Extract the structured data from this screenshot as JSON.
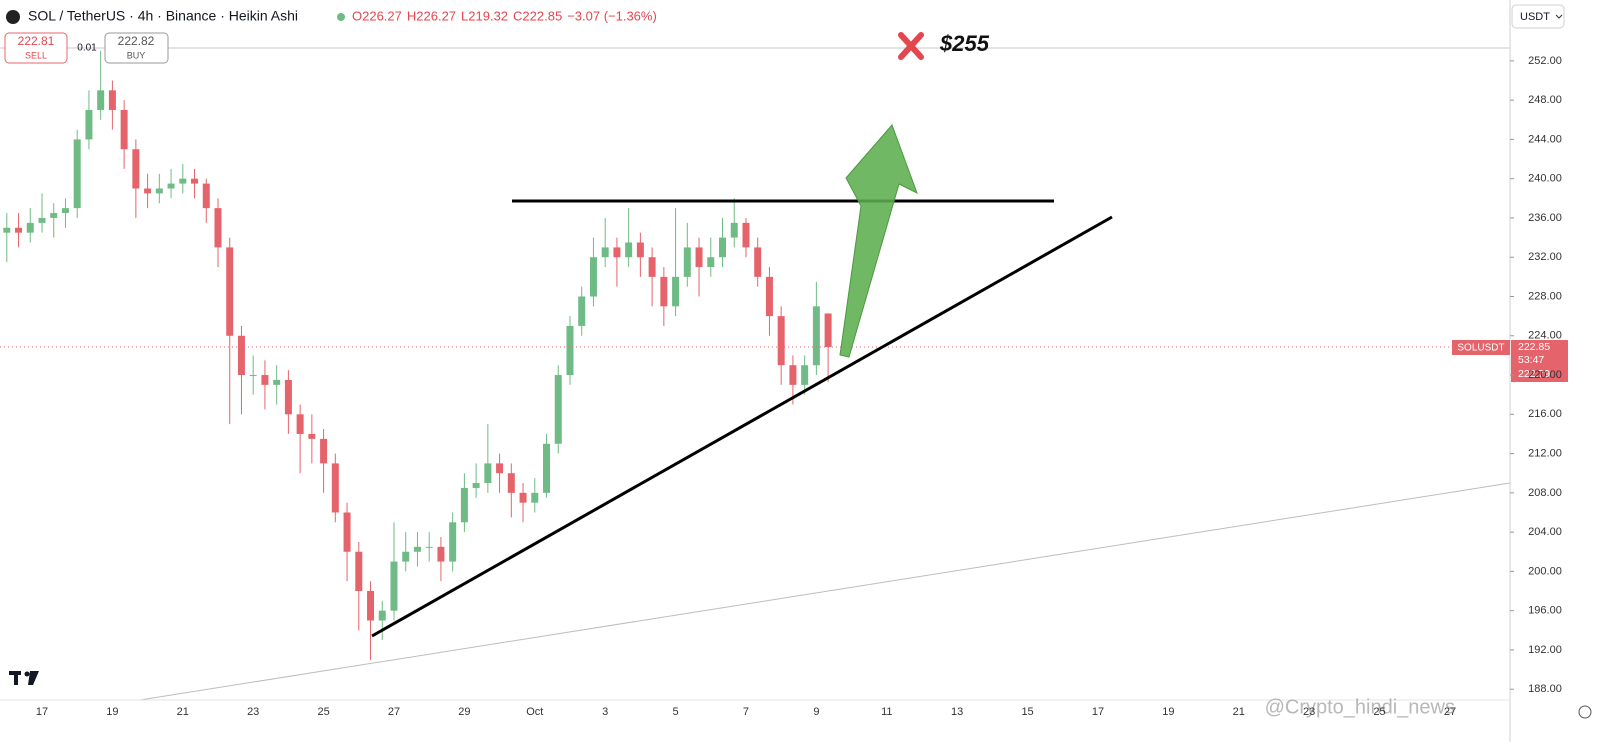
{
  "chart_data": {
    "type": "candlestick",
    "title": "SOL / TetherUS · 4h · Binance · Heikin Ashi",
    "ohlc_legend": [
      "O226.27",
      "H226.27",
      "L219.32",
      "C222.85",
      "−3.07 (−1.36%)"
    ],
    "trade": {
      "sell_price": "222.81",
      "sell": "SELL",
      "spread": "0.01",
      "buy_price": "222.82",
      "buy": "BUY"
    },
    "currency": "USDT",
    "price_label": {
      "symbol": "SOLUSDT",
      "price": "222.85",
      "countdown": "53:47",
      "ask": "222.79"
    },
    "annotation": "$255",
    "watermark": "@Crypto_hindi_news",
    "up_color": "#6fbb85",
    "down_color": "#e5646c",
    "categories": [
      null,
      null,
      null,
      "17",
      null,
      null,
      null,
      null,
      null,
      "19",
      null,
      null,
      null,
      null,
      null,
      "21",
      null,
      null,
      null,
      null,
      null,
      "23",
      null,
      null,
      null,
      null,
      null,
      "25",
      null,
      null,
      null,
      null,
      null,
      "27",
      null,
      null,
      null,
      null,
      null,
      "29",
      null,
      null,
      null,
      null,
      null,
      "Oct",
      null,
      null,
      null,
      null,
      null,
      "3",
      null,
      null,
      null,
      null,
      null,
      "5",
      null,
      null,
      null,
      null,
      null,
      "7",
      null,
      null,
      null,
      null,
      null,
      "9",
      null,
      null,
      null,
      null,
      null,
      "11",
      null,
      null,
      null,
      null,
      null,
      "13",
      null,
      null,
      null,
      null,
      null,
      "15",
      null,
      null,
      null,
      null,
      null,
      "17",
      null,
      null,
      null,
      null,
      null,
      "19",
      null,
      null,
      null,
      null,
      null,
      "21",
      null,
      null,
      null,
      null,
      null,
      "23",
      null,
      null,
      null,
      null,
      null,
      "25",
      null,
      null,
      null,
      null,
      null,
      "27",
      null,
      null,
      null,
      null
    ],
    "open": [
      234.5,
      235,
      234.5,
      235.5,
      236,
      236.5,
      237,
      244,
      247,
      249,
      247,
      243,
      239,
      238.5,
      239,
      239.5,
      240,
      239.5,
      237,
      233,
      224,
      220,
      220,
      219,
      219.5,
      216,
      214,
      213.5,
      211,
      206,
      202,
      198,
      195,
      196,
      201,
      202,
      202.5,
      202.5,
      201,
      205,
      208.5,
      209,
      211,
      210,
      208,
      207,
      208,
      213,
      220,
      225,
      228,
      232,
      233,
      232,
      233.5,
      232,
      230,
      227,
      230,
      233,
      231,
      232,
      234,
      235.5,
      233,
      230,
      226,
      221,
      219,
      221,
      226.27,
      null,
      null,
      null,
      null,
      null,
      null,
      null,
      null,
      null,
      null,
      null,
      null,
      null,
      null,
      null,
      null,
      null,
      null,
      null,
      null,
      null,
      null,
      null,
      null,
      null,
      null,
      null,
      null,
      null,
      null,
      null,
      null,
      null,
      null,
      null,
      null,
      null,
      null,
      null,
      null,
      null,
      null,
      null,
      null,
      null,
      null,
      null,
      null,
      null,
      null,
      null,
      null,
      null,
      null,
      null,
      null,
      null
    ],
    "high": [
      236.5,
      236.5,
      237,
      238.5,
      237.5,
      238,
      245,
      249,
      253,
      250,
      248,
      244,
      240.5,
      240.5,
      241,
      241.5,
      241,
      240,
      238,
      234,
      225,
      222,
      221.5,
      221,
      220.5,
      217,
      216,
      214.5,
      212,
      207,
      203,
      199,
      197,
      205,
      204,
      204,
      204,
      203.5,
      206,
      210,
      211,
      215,
      212,
      211,
      209,
      209.5,
      214,
      221,
      226,
      229,
      234,
      236,
      234,
      237,
      234.5,
      233,
      231,
      237,
      235.5,
      234,
      234,
      236,
      238,
      236,
      234,
      231,
      227,
      222,
      222,
      229.5,
      226.27,
      null,
      null,
      null,
      null,
      null,
      null,
      null,
      null,
      null,
      null,
      null,
      null,
      null,
      null,
      null,
      null,
      null,
      null,
      null,
      null,
      null,
      null,
      null,
      null,
      null,
      null,
      null,
      null,
      null,
      null,
      null,
      null,
      null,
      null,
      null,
      null,
      null,
      null,
      null,
      null,
      null,
      null,
      null,
      null,
      null,
      null,
      null,
      null,
      null,
      null,
      null,
      null,
      null,
      null,
      null,
      null,
      null
    ],
    "low": [
      231.5,
      233,
      233.5,
      234.5,
      234,
      235,
      236,
      243,
      246,
      245,
      241,
      236,
      237,
      237.5,
      238,
      238.5,
      238,
      235.5,
      231,
      215,
      216,
      218,
      216.5,
      217,
      214,
      210,
      211,
      208,
      205,
      199,
      194,
      191,
      193,
      195,
      200,
      200.5,
      201,
      199,
      200,
      204,
      207.5,
      208,
      208,
      205.5,
      205,
      206,
      207.5,
      212,
      219,
      224,
      227,
      231,
      229,
      231,
      230,
      227,
      225,
      226,
      229,
      228,
      230,
      231,
      233,
      232,
      229,
      224,
      219,
      217,
      218,
      220,
      219.32,
      null,
      null,
      null,
      null,
      null,
      null,
      null,
      null,
      null,
      null,
      null,
      null,
      null,
      null,
      null,
      null,
      null,
      null,
      null,
      null,
      null,
      null,
      null,
      null,
      null,
      null,
      null,
      null,
      null,
      null,
      null,
      null,
      null,
      null,
      null,
      null,
      null,
      null,
      null,
      null,
      null,
      null,
      null,
      null,
      null,
      null,
      null,
      null,
      null,
      null,
      null,
      null,
      null,
      null,
      null,
      null,
      null
    ],
    "close": [
      235,
      234.5,
      235.5,
      236,
      236.5,
      237,
      244,
      247,
      249,
      247,
      243,
      239,
      238.5,
      239,
      239.5,
      240,
      239.5,
      237,
      233,
      224,
      220,
      220,
      219,
      219.5,
      216,
      214,
      213.5,
      211,
      206,
      202,
      198,
      195,
      196,
      201,
      202,
      202.5,
      202.5,
      201,
      205,
      208.5,
      209,
      211,
      210,
      208,
      207,
      208,
      213,
      220,
      225,
      228,
      232,
      233,
      232,
      233.5,
      232,
      230,
      227,
      230,
      233,
      231,
      232,
      234,
      235.5,
      233,
      230,
      226,
      221,
      219,
      221,
      227,
      222.85,
      null,
      null,
      null,
      null,
      null,
      null,
      null,
      null,
      null,
      null,
      null,
      null,
      null,
      null,
      null,
      null,
      null,
      null,
      null,
      null,
      null,
      null,
      null,
      null,
      null,
      null,
      null,
      null,
      null,
      null,
      null,
      null,
      null,
      null,
      null,
      null,
      null,
      null,
      null,
      null,
      null,
      null,
      null,
      null,
      null,
      null,
      null,
      null,
      null,
      null,
      null,
      null,
      null,
      null,
      null,
      null,
      null
    ],
    "ylim": [
      186.9,
      258.2
    ],
    "yticks": [
      {
        "value": 188,
        "label": "188.00"
      },
      {
        "value": 192,
        "label": "192.00"
      },
      {
        "value": 196,
        "label": "196.00"
      },
      {
        "value": 200,
        "label": "200.00"
      },
      {
        "value": 204,
        "label": "204.00"
      },
      {
        "value": 208,
        "label": "208.00"
      },
      {
        "value": 212,
        "label": "212.00"
      },
      {
        "value": 216,
        "label": "216.00"
      },
      {
        "value": 220,
        "label": "220.00"
      },
      {
        "value": 224,
        "label": "224.00"
      },
      {
        "value": 228,
        "label": "228.00"
      },
      {
        "value": 232,
        "label": "232.00"
      },
      {
        "value": 236,
        "label": "236.00"
      },
      {
        "value": 240,
        "label": "240.00"
      },
      {
        "value": 244,
        "label": "244.00"
      },
      {
        "value": 248,
        "label": "248.00"
      },
      {
        "value": 252,
        "label": "252.00"
      }
    ],
    "grid": false
  }
}
